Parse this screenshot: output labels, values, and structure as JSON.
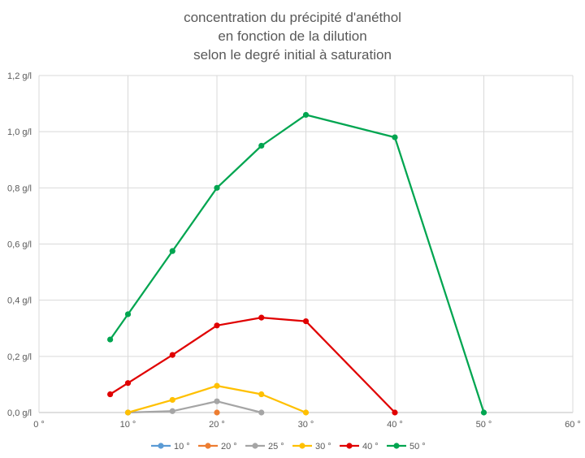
{
  "chart_data": {
    "type": "line",
    "title_lines": [
      "concentration du précipité d'anéthol",
      "en fonction de la dilution",
      "selon le degré initial à saturation"
    ],
    "xlabel": "",
    "ylabel": "",
    "xlim": [
      0,
      60
    ],
    "ylim": [
      0,
      1.2
    ],
    "x_ticks": [
      {
        "value": 0,
        "label": "0 °"
      },
      {
        "value": 10,
        "label": "10 °"
      },
      {
        "value": 20,
        "label": "20 °"
      },
      {
        "value": 30,
        "label": "30 °"
      },
      {
        "value": 40,
        "label": "40 °"
      },
      {
        "value": 50,
        "label": "50 °"
      },
      {
        "value": 60,
        "label": "60 °"
      }
    ],
    "y_ticks": [
      {
        "value": 0,
        "label": "0,0 g/l"
      },
      {
        "value": 0.2,
        "label": "0,2 g/l"
      },
      {
        "value": 0.4,
        "label": "0,4 g/l"
      },
      {
        "value": 0.6,
        "label": "0,6 g/l"
      },
      {
        "value": 0.8,
        "label": "0,8 g/l"
      },
      {
        "value": 1.0,
        "label": "1,0 g/l"
      },
      {
        "value": 1.2,
        "label": "1,2 g/l"
      }
    ],
    "grid": {
      "vertical": true,
      "horizontal": true
    },
    "legend_position": "bottom",
    "series": [
      {
        "name": "10 °",
        "color": "#5b9bd5",
        "points": [
          [
            10,
            0
          ]
        ]
      },
      {
        "name": "20 °",
        "color": "#ed7d31",
        "points": [
          [
            20,
            0
          ]
        ]
      },
      {
        "name": "25 °",
        "color": "#a5a5a5",
        "points": [
          [
            10,
            0
          ],
          [
            15,
            0.005
          ],
          [
            20,
            0.04
          ],
          [
            25,
            0
          ]
        ]
      },
      {
        "name": "30 °",
        "color": "#ffc000",
        "points": [
          [
            10,
            0
          ],
          [
            15,
            0.045
          ],
          [
            20,
            0.095
          ],
          [
            25,
            0.065
          ],
          [
            30,
            0
          ]
        ]
      },
      {
        "name": "40 °",
        "color": "#e00000",
        "points": [
          [
            8,
            0.065
          ],
          [
            10,
            0.105
          ],
          [
            15,
            0.205
          ],
          [
            20,
            0.31
          ],
          [
            25,
            0.338
          ],
          [
            30,
            0.325
          ],
          [
            40,
            0
          ]
        ]
      },
      {
        "name": "50 °",
        "color": "#00a550",
        "points": [
          [
            8,
            0.26
          ],
          [
            10,
            0.35
          ],
          [
            15,
            0.575
          ],
          [
            20,
            0.8
          ],
          [
            25,
            0.95
          ],
          [
            30,
            1.06
          ],
          [
            40,
            0.98
          ],
          [
            50,
            0
          ]
        ]
      }
    ]
  }
}
